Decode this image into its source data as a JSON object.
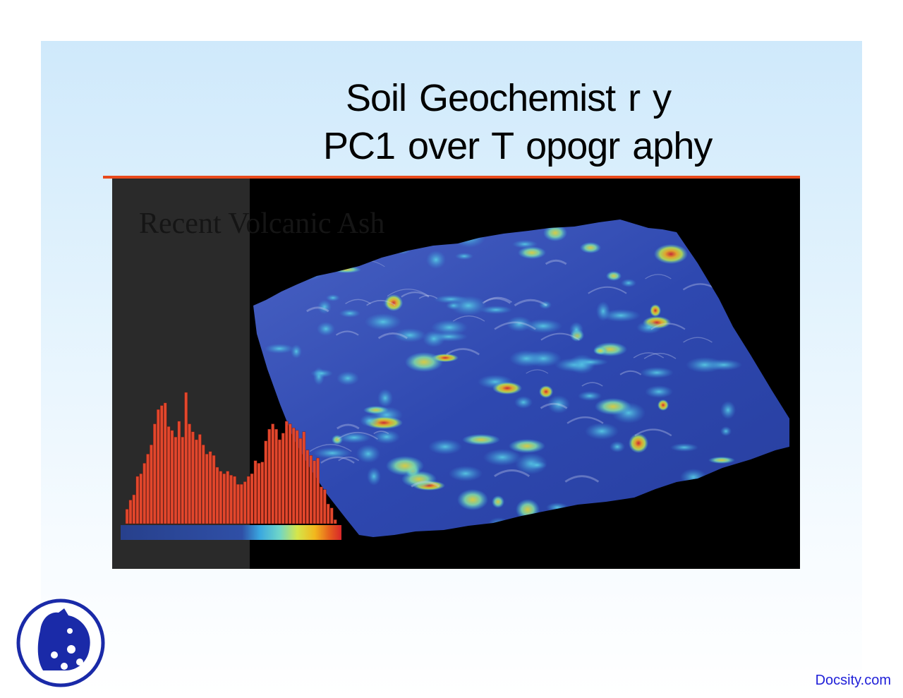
{
  "slide": {
    "title_line1": "Soil Geochemist r y",
    "title_line2": "PC1 over  T opogr aphy",
    "figure_label": "Recent Volcanic Ash",
    "colors": {
      "rule": "#e84a1c",
      "histogram_bars": "#e2472c",
      "figure_background": "#000000"
    }
  },
  "histogram": {
    "relative_heights": [
      0.11,
      0.18,
      0.22,
      0.36,
      0.38,
      0.46,
      0.53,
      0.6,
      0.76,
      0.87,
      0.9,
      0.92,
      0.74,
      0.71,
      0.66,
      0.78,
      0.66,
      1.0,
      0.76,
      0.7,
      0.64,
      0.68,
      0.6,
      0.53,
      0.55,
      0.52,
      0.43,
      0.4,
      0.38,
      0.4,
      0.37,
      0.36,
      0.3,
      0.3,
      0.32,
      0.36,
      0.38,
      0.48,
      0.46,
      0.47,
      0.63,
      0.72,
      0.76,
      0.72,
      0.64,
      0.69,
      0.78,
      0.76,
      0.73,
      0.71,
      0.65,
      0.7,
      0.56,
      0.52,
      0.48,
      0.5,
      0.28,
      0.26,
      0.15,
      0.12,
      0.03
    ]
  },
  "footer": {
    "watermark": "Docsity.com",
    "logo_icon": "docsity-logo-icon"
  }
}
